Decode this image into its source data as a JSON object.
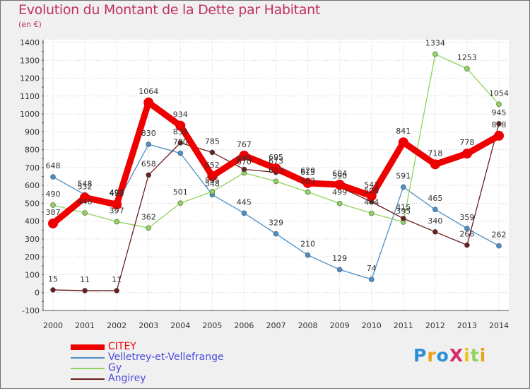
{
  "title": "Evolution du Montant de la Dette par Habitant",
  "subtitle": "(en €)",
  "logo": "ProXiti",
  "chart_data": {
    "type": "line",
    "x": [
      "2000",
      "2001",
      "2002",
      "2003",
      "2004",
      "2005",
      "2006",
      "2007",
      "2008",
      "2009",
      "2010",
      "2011",
      "2012",
      "2013",
      "2014"
    ],
    "ylim": [
      -100,
      1400
    ],
    "yticks": [
      -100,
      0,
      100,
      200,
      300,
      400,
      500,
      600,
      700,
      800,
      900,
      1000,
      1100,
      1200,
      1300,
      1400
    ],
    "grid": true,
    "legend_position": "bottom-left",
    "series": [
      {
        "name": "CITEY",
        "color": "#ee0000",
        "values": [
          387,
          532,
          493,
          1064,
          934,
          652,
          767,
          695,
          613,
          604,
          541,
          841,
          718,
          778,
          878
        ]
      },
      {
        "name": "Velletrey-et-Vellefrange",
        "color": "#4a8fc9",
        "values": [
          648,
          548,
          498,
          830,
          780,
          548,
          445,
          329,
          210,
          129,
          74,
          591,
          465,
          359,
          262
        ]
      },
      {
        "name": "Gy",
        "color": "#8ed45a",
        "values": [
          490,
          446,
          397,
          362,
          501,
          565,
          670,
          623,
          563,
          499,
          444,
          395,
          1334,
          1253,
          1054
        ]
      },
      {
        "name": "Angirey",
        "color": "#6b1e1e",
        "values": [
          15,
          11,
          11,
          658,
          838,
          785,
          690,
          673,
          620,
          590,
          508,
          415,
          340,
          266,
          945
        ]
      }
    ],
    "data_labels": [
      [
        "387",
        "532",
        "493",
        "1064",
        "934",
        "652",
        "767",
        "695",
        "613",
        "604",
        "541",
        "841",
        "718",
        "778",
        "878"
      ],
      [
        "648",
        "548",
        "498",
        "830",
        "780",
        "548",
        "445",
        "329",
        "210",
        "129",
        "74",
        "591",
        "465",
        "359",
        "262"
      ],
      [
        "490",
        "446",
        "397",
        "362",
        "501",
        "565",
        "670",
        "623",
        "563",
        "499",
        "444",
        "395",
        "1334",
        "1253",
        "1054"
      ],
      [
        "15",
        "11",
        "11",
        "658",
        "838",
        "785",
        "690",
        "673",
        "620",
        "590",
        "508",
        "415",
        "340",
        "266",
        "945"
      ]
    ]
  }
}
